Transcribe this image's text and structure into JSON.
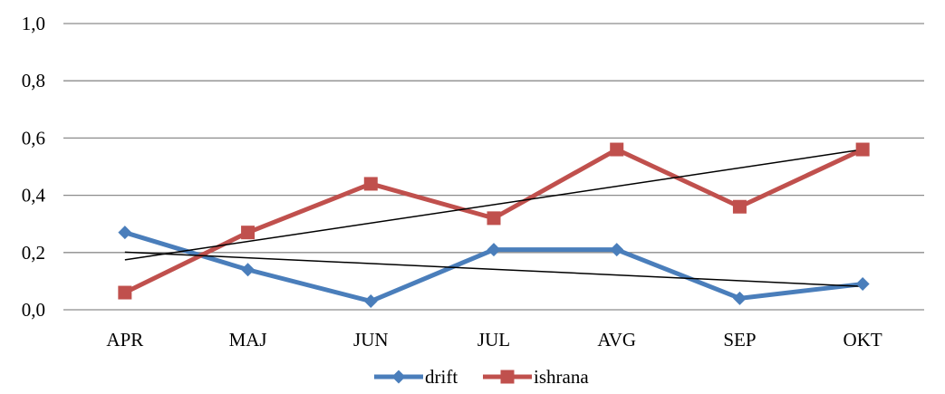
{
  "chart_data": {
    "type": "line",
    "title": "",
    "xlabel": "",
    "ylabel": "",
    "categories": [
      "APR",
      "MAJ",
      "JUN",
      "JUL",
      "AVG",
      "SEP",
      "OKT"
    ],
    "ylim": [
      0,
      1.0
    ],
    "yticks": [
      0.0,
      0.2,
      0.4,
      0.6,
      0.8,
      1.0
    ],
    "ytick_labels": [
      "0,0",
      "0,2",
      "0,4",
      "0,6",
      "0,8",
      "1,0"
    ],
    "grid": true,
    "legend_position": "bottom",
    "trendlines": "linear",
    "series": [
      {
        "name": "drift",
        "values": [
          0.27,
          0.14,
          0.03,
          0.21,
          0.21,
          0.04,
          0.09
        ],
        "color": "#4a7ebb",
        "marker": "diamond"
      },
      {
        "name": "ishrana",
        "values": [
          0.06,
          0.27,
          0.44,
          0.32,
          0.56,
          0.36,
          0.56
        ],
        "color": "#c0504d",
        "marker": "square"
      }
    ]
  }
}
